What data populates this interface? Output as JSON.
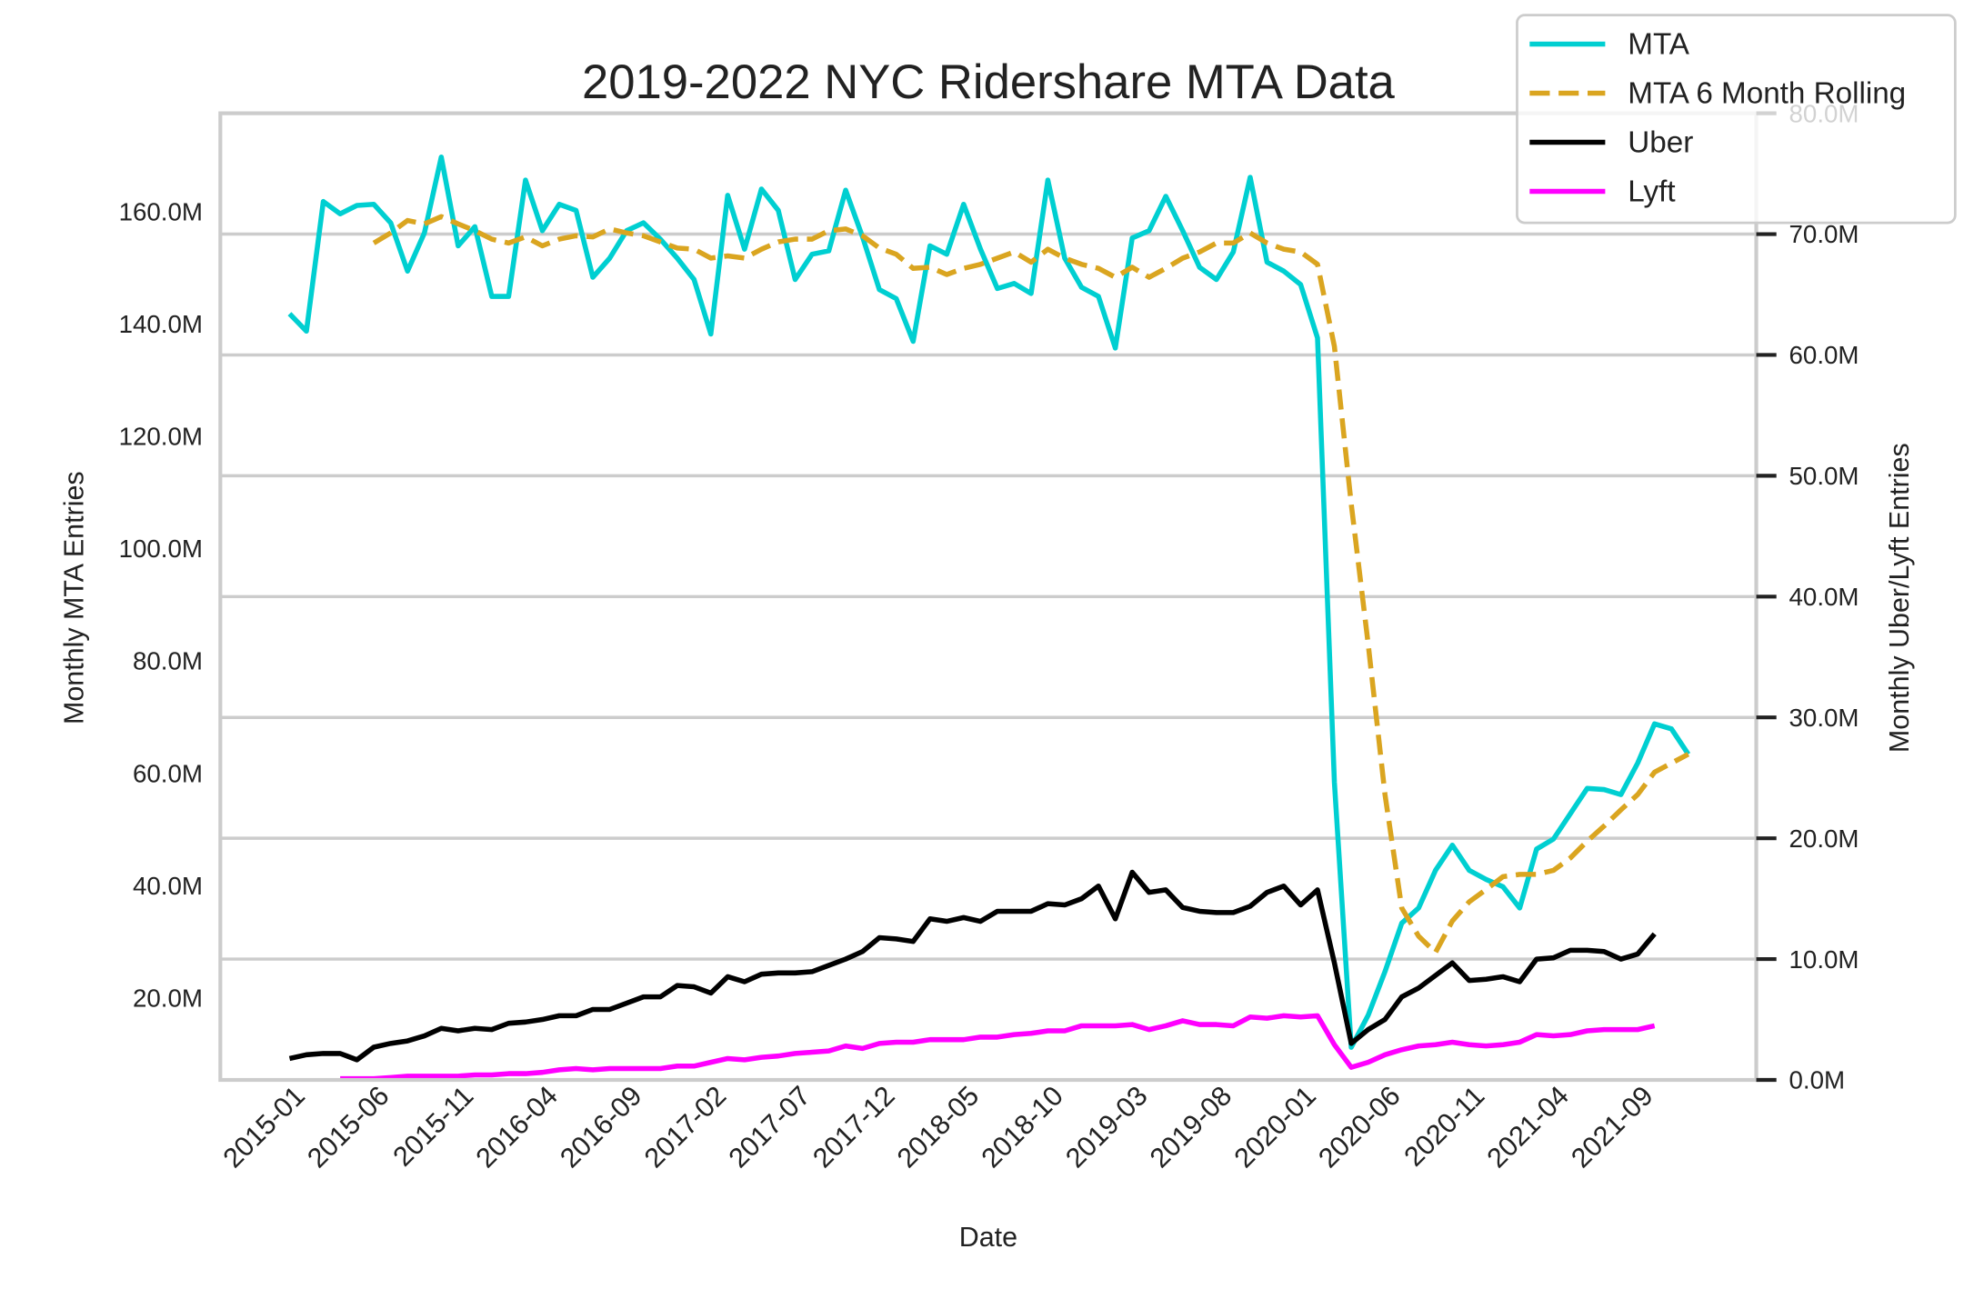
{
  "chart_data": {
    "type": "line",
    "title": "2019-2022 NYC Ridershare MTA Data",
    "x_label": "Date",
    "y_label": "Monthly MTA Entries",
    "y2_label": "Monthly Uber/Lyft Entries",
    "categories": [
      null,
      "2015-01",
      null,
      null,
      null,
      null,
      "2015-06",
      null,
      null,
      null,
      null,
      "2015-11",
      null,
      null,
      null,
      null,
      "2016-04",
      null,
      null,
      null,
      null,
      "2016-09",
      null,
      null,
      null,
      null,
      "2017-02",
      null,
      null,
      null,
      null,
      "2017-07",
      null,
      null,
      null,
      null,
      "2017-12",
      null,
      null,
      null,
      null,
      "2018-05",
      null,
      null,
      null,
      null,
      "2018-10",
      null,
      null,
      null,
      null,
      "2019-03",
      null,
      null,
      null,
      null,
      "2019-08",
      null,
      null,
      null,
      null,
      "2020-01",
      null,
      null,
      null,
      null,
      "2020-06",
      null,
      null,
      null,
      null,
      "2020-11",
      null,
      null,
      null,
      null,
      "2021-04",
      null,
      null,
      null,
      null,
      "2021-09",
      null,
      null
    ],
    "ylim": [
      5400000.0,
      177500000.0
    ],
    "yticks": [
      {
        "value": 20000000.0,
        "label": "20.0M"
      },
      {
        "value": 40000000.0,
        "label": "40.0M"
      },
      {
        "value": 60000000.0,
        "label": "60.0M"
      },
      {
        "value": 80000000.0,
        "label": "80.0M"
      },
      {
        "value": 100000000.0,
        "label": "100.0M"
      },
      {
        "value": 120000000.0,
        "label": "120.0M"
      },
      {
        "value": 140000000.0,
        "label": "140.0M"
      },
      {
        "value": 160000000.0,
        "label": "160.0M"
      }
    ],
    "y2lim": [
      0,
      80000000.0
    ],
    "y2ticks": [
      {
        "value": 0,
        "label": "0.0M"
      },
      {
        "value": 10000000.0,
        "label": "10.0M"
      },
      {
        "value": 20000000.0,
        "label": "20.0M"
      },
      {
        "value": 30000000.0,
        "label": "30.0M"
      },
      {
        "value": 40000000.0,
        "label": "40.0M"
      },
      {
        "value": 50000000.0,
        "label": "50.0M"
      },
      {
        "value": 60000000.0,
        "label": "60.0M"
      },
      {
        "value": 70000000.0,
        "label": "70.0M"
      },
      {
        "value": 80000000.0,
        "label": "80.0M"
      }
    ],
    "grid": "y2",
    "legend": "upper right",
    "series": [
      {
        "name": "MTA",
        "color": "#00cfd1",
        "linestyle": "solid",
        "axis": "y",
        "values": [
          141800000.0,
          138700000.0,
          161800000.0,
          159600000.0,
          161100000.0,
          161300000.0,
          158000000.0,
          149400000.0,
          156200000.0,
          169700000.0,
          153900000.0,
          157300000.0,
          144900000.0,
          144900000.0,
          165600000.0,
          156600000.0,
          161300000.0,
          160200000.0,
          148300000.0,
          151700000.0,
          156600000.0,
          158000000.0,
          155100000.0,
          151700000.0,
          147900000.0,
          138200000.0,
          162900000.0,
          153300000.0,
          164000000.0,
          160200000.0,
          147900000.0,
          152400000.0,
          153000000.0,
          163800000.0,
          155500000.0,
          146100000.0,
          144500000.0,
          136900000.0,
          153900000.0,
          152400000.0,
          161300000.0,
          153300000.0,
          146300000.0,
          147200000.0,
          145400000.0,
          165600000.0,
          151700000.0,
          146500000.0,
          144900000.0,
          135700000.0,
          155300000.0,
          156600000.0,
          162700000.0,
          156600000.0,
          150100000.0,
          147900000.0,
          152800000.0,
          166100000.0,
          151000000.0,
          149400000.0,
          147000000.0,
          137500000.0,
          58400000.0,
          11200000.0,
          16900000.0,
          24700000.0,
          33300000.0,
          36000000.0,
          42700000.0,
          47200000.0,
          42700000.0,
          41100000.0,
          39800000.0,
          36000000.0,
          46500000.0,
          48300000.0,
          52800000.0,
          57300000.0,
          57100000.0,
          56200000.0,
          61800000.0,
          68800000.0,
          67900000.0,
          63400000.0
        ]
      },
      {
        "name": "MTA 6 Month Rolling",
        "color": "#daa520",
        "linestyle": "dashed",
        "axis": "y",
        "values": [
          null,
          null,
          null,
          null,
          null,
          154400000.0,
          156200000.0,
          158400000.0,
          157800000.0,
          159100000.0,
          157800000.0,
          156600000.0,
          155100000.0,
          154400000.0,
          155500000.0,
          153900000.0,
          155100000.0,
          155700000.0,
          155500000.0,
          156900000.0,
          156200000.0,
          155700000.0,
          154600000.0,
          153500000.0,
          153300000.0,
          151700000.0,
          152100000.0,
          151700000.0,
          153300000.0,
          154600000.0,
          155100000.0,
          155100000.0,
          156600000.0,
          156900000.0,
          155700000.0,
          153500000.0,
          152400000.0,
          149900000.0,
          150100000.0,
          148800000.0,
          149900000.0,
          150600000.0,
          151700000.0,
          152800000.0,
          151000000.0,
          153300000.0,
          151700000.0,
          150600000.0,
          149900000.0,
          148300000.0,
          150100000.0,
          148300000.0,
          149900000.0,
          151700000.0,
          152800000.0,
          154400000.0,
          154400000.0,
          156200000.0,
          154400000.0,
          153300000.0,
          152800000.0,
          150600000.0,
          136000000.0,
          107900000.0,
          83100000.0,
          56200000.0,
          36000000.0,
          31000000.0,
          28100000.0,
          33700000.0,
          37100000.0,
          39300000.0,
          41600000.0,
          42000000.0,
          42000000.0,
          42700000.0,
          44900000.0,
          47900000.0,
          50600000.0,
          53500000.0,
          56200000.0,
          60200000.0,
          61800000.0,
          63400000.0
        ]
      },
      {
        "name": "Uber",
        "color": "#000000",
        "linestyle": "solid",
        "axis": "y2",
        "values": [
          1770000.0,
          2080000.0,
          2190000.0,
          2190000.0,
          1670000.0,
          2710000.0,
          3020000.0,
          3230000.0,
          3650000.0,
          4270000.0,
          4060000.0,
          4270000.0,
          4170000.0,
          4690000.0,
          4790000.0,
          5000000.0,
          5310000.0,
          5310000.0,
          5830000.0,
          5830000.0,
          6350000.0,
          6880000.0,
          6880000.0,
          7810000.0,
          7710000.0,
          7190000.0,
          8540000.0,
          8130000.0,
          8750000.0,
          8850000.0,
          8850000.0,
          8960000.0,
          9480000.0,
          10000000.0,
          10630000.0,
          11770000.0,
          11670000.0,
          11460000.0,
          13330000.0,
          13130000.0,
          13440000.0,
          13130000.0,
          13960000.0,
          13960000.0,
          13960000.0,
          14580000.0,
          14480000.0,
          15000000.0,
          16040000.0,
          13330000.0,
          17190000.0,
          15520000.0,
          15730000.0,
          14270000.0,
          13960000.0,
          13850000.0,
          13850000.0,
          14380000.0,
          15520000.0,
          16040000.0,
          14480000.0,
          15730000.0,
          9690000.0,
          3020000.0,
          4170000.0,
          5000000.0,
          6880000.0,
          7600000.0,
          8650000.0,
          9690000.0,
          8230000.0,
          8330000.0,
          8540000.0,
          8130000.0,
          10000000.0,
          10100000.0,
          10730000.0,
          10730000.0,
          10630000.0,
          10000000.0,
          10420000.0,
          12080000.0,
          null,
          null
        ]
      },
      {
        "name": "Lyft",
        "color": "#ff00ff",
        "linestyle": "solid",
        "axis": "y2",
        "values": [
          null,
          null,
          null,
          100000.0,
          100000.0,
          100000.0,
          200000.0,
          310000.0,
          310000.0,
          310000.0,
          310000.0,
          420000.0,
          420000.0,
          520000.0,
          520000.0,
          630000.0,
          830000.0,
          940000.0,
          830000.0,
          940000.0,
          940000.0,
          940000.0,
          940000.0,
          1150000.0,
          1150000.0,
          1460000.0,
          1770000.0,
          1670000.0,
          1880000.0,
          1980000.0,
          2190000.0,
          2290000.0,
          2400000.0,
          2810000.0,
          2600000.0,
          3020000.0,
          3130000.0,
          3130000.0,
          3330000.0,
          3330000.0,
          3330000.0,
          3540000.0,
          3540000.0,
          3750000.0,
          3850000.0,
          4060000.0,
          4060000.0,
          4480000.0,
          4480000.0,
          4480000.0,
          4580000.0,
          4170000.0,
          4480000.0,
          4900000.0,
          4580000.0,
          4580000.0,
          4480000.0,
          5210000.0,
          5100000.0,
          5310000.0,
          5210000.0,
          5310000.0,
          2920000.0,
          1040000.0,
          1460000.0,
          2080000.0,
          2500000.0,
          2810000.0,
          2920000.0,
          3130000.0,
          2920000.0,
          2810000.0,
          2920000.0,
          3130000.0,
          3750000.0,
          3650000.0,
          3750000.0,
          4060000.0,
          4170000.0,
          4170000.0,
          4170000.0,
          4480000.0,
          null,
          null
        ]
      }
    ]
  }
}
